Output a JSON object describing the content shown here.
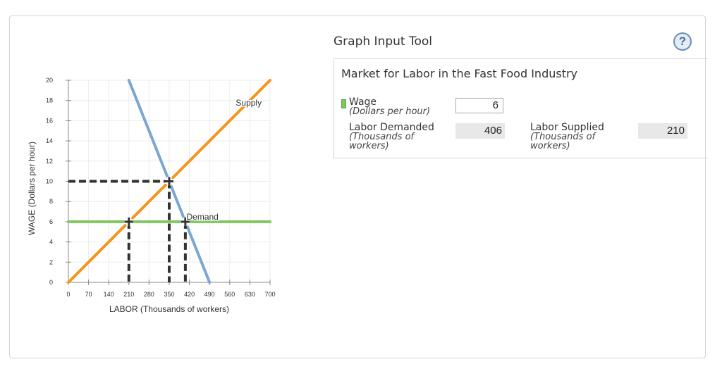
{
  "tool": {
    "title": "Graph Input Tool",
    "help_label": "?"
  },
  "panel": {
    "title": "Market for Labor in the Fast Food Industry",
    "wage": {
      "label": "Wage",
      "unit": "(Dollars per hour)",
      "value": "6",
      "swatch_color": "#7ec860"
    },
    "labor_demanded": {
      "label": "Labor Demanded",
      "unit_line1": "(Thousands of",
      "unit_line2": "workers)",
      "value": "406"
    },
    "labor_supplied": {
      "label": "Labor Supplied",
      "unit_line1": "(Thousands of",
      "unit_line2": "workers)",
      "value": "210"
    }
  },
  "chart_data": {
    "type": "line",
    "title": "",
    "xlabel": "LABOR (Thousands of workers)",
    "ylabel": "WAGE (Dollars per hour)",
    "xlim": [
      0,
      700
    ],
    "ylim": [
      0,
      20
    ],
    "x_ticks": [
      0,
      70,
      140,
      210,
      280,
      350,
      420,
      490,
      560,
      630,
      700
    ],
    "y_ticks": [
      0,
      2,
      4,
      6,
      8,
      10,
      12,
      14,
      16,
      18,
      20
    ],
    "grid": true,
    "series": [
      {
        "name": "Supply",
        "color": "#f7941d",
        "points": [
          [
            0,
            0
          ],
          [
            700,
            20
          ]
        ]
      },
      {
        "name": "Demand",
        "color": "#7ba7d1",
        "points": [
          [
            210,
            20
          ],
          [
            490,
            0
          ]
        ]
      },
      {
        "name": "Wage",
        "color": "#7ec860",
        "points": [
          [
            0,
            6
          ],
          [
            700,
            6
          ]
        ]
      }
    ],
    "markers": [
      {
        "x": 350,
        "y": 10,
        "label": "equilibrium"
      },
      {
        "x": 210,
        "y": 6,
        "label": "labor supplied at wage 6"
      },
      {
        "x": 406,
        "y": 6,
        "label": "labor demanded at wage 6"
      }
    ],
    "dashed_guides": [
      {
        "from": [
          0,
          10
        ],
        "to": [
          350,
          10
        ]
      },
      {
        "from": [
          350,
          10
        ],
        "to": [
          350,
          0
        ]
      },
      {
        "from": [
          210,
          6
        ],
        "to": [
          210,
          0
        ]
      },
      {
        "from": [
          406,
          6
        ],
        "to": [
          406,
          0
        ]
      }
    ],
    "annotations": [
      {
        "text": "Supply",
        "x": 630,
        "y": 17.5
      },
      {
        "text": "Demand",
        "x": 410,
        "y": 6.2
      }
    ]
  }
}
